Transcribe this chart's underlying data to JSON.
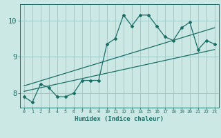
{
  "title": "",
  "xlabel": "Humidex (Indice chaleur)",
  "bg_color": "#cce8e4",
  "grid_color": "#a0cccc",
  "line_color": "#1a6e68",
  "x_data": [
    0,
    1,
    2,
    3,
    4,
    5,
    6,
    7,
    8,
    9,
    10,
    11,
    12,
    13,
    14,
    15,
    16,
    17,
    18,
    19,
    20,
    21,
    22,
    23
  ],
  "y_data": [
    7.9,
    7.75,
    8.25,
    8.15,
    7.9,
    7.9,
    8.0,
    8.35,
    8.35,
    8.35,
    9.35,
    9.5,
    10.15,
    9.85,
    10.15,
    10.15,
    9.85,
    9.55,
    9.45,
    9.8,
    9.95,
    9.2,
    9.45,
    9.35
  ],
  "trend1_x": [
    0,
    23
  ],
  "trend1_y": [
    8.05,
    9.2
  ],
  "trend2_x": [
    0,
    23
  ],
  "trend2_y": [
    8.2,
    9.8
  ],
  "ylim": [
    7.6,
    10.45
  ],
  "xlim": [
    -0.5,
    23.5
  ],
  "yticks": [
    8,
    9,
    10
  ],
  "xticks": [
    0,
    1,
    2,
    3,
    4,
    5,
    6,
    7,
    8,
    9,
    10,
    11,
    12,
    13,
    14,
    15,
    16,
    17,
    18,
    19,
    20,
    21,
    22,
    23
  ]
}
